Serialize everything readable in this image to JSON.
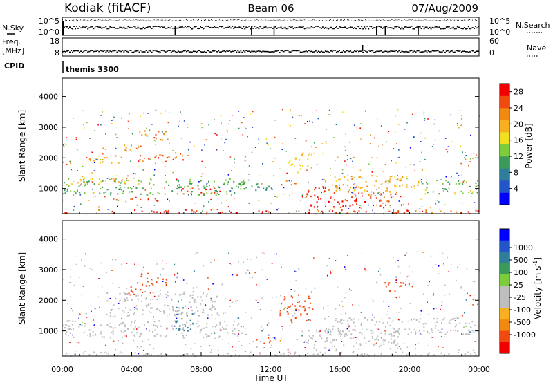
{
  "header": {
    "station": "Kodiak (fitACF)",
    "beam": "Beam 06",
    "date": "07/Aug/2009"
  },
  "aux_panels": {
    "nsky": {
      "label": "N.Sky",
      "tick_top": "10^5",
      "tick_bottom": "10^0"
    },
    "nsearch": {
      "label": "N.Search",
      "tick_top": "10^5",
      "tick_bottom": "10^0"
    },
    "freq": {
      "label_line1": "Freq.",
      "label_line2": "[MHz]",
      "tick_top": "18",
      "tick_bottom": "8"
    },
    "nave": {
      "label": "Nave",
      "tick_top": "60",
      "tick_bottom": "0"
    },
    "cpid": {
      "label": "CPID",
      "value": "themis 3300"
    }
  },
  "colors": {
    "power_scale": [
      "#0000ff",
      "#2255c8",
      "#2e7d9a",
      "#3a9a5a",
      "#7ccc3c",
      "#f0e020",
      "#f8b020",
      "#f08a10",
      "#f04a10",
      "#f00000"
    ],
    "velocity_scale": [
      "#f00000",
      "#f04a10",
      "#f08a10",
      "#f8b020",
      "#bebebe",
      "#bebebe",
      "#7ccc3c",
      "#3a9a5a",
      "#2e7d9a",
      "#2255c8",
      "#0000ff"
    ],
    "ground_scatter": "#bebebe"
  },
  "chart_data": [
    {
      "type": "heatmap",
      "name": "power",
      "ylabel": "Slant Range [km]",
      "ylim": [
        180,
        4600
      ],
      "xlim": [
        0,
        24
      ],
      "yticks": [
        "1000",
        "2000",
        "3000",
        "4000"
      ],
      "colorbar": {
        "label": "Power [dB]",
        "ticks": [
          "4",
          "8",
          "12",
          "16",
          "20",
          "24",
          "28"
        ],
        "range": [
          0,
          30
        ]
      },
      "features": [
        {
          "t0": 0.0,
          "t1": 24.0,
          "r0": 200,
          "r1": 330,
          "level": 26
        },
        {
          "t0": 0.0,
          "t1": 10.5,
          "r0": 800,
          "r1": 1350,
          "level": 12
        },
        {
          "t0": 0.2,
          "t1": 4.0,
          "r0": 1150,
          "r1": 1400,
          "level": 19
        },
        {
          "t0": 2.7,
          "t1": 6.5,
          "r0": 600,
          "r1": 700,
          "level": 27
        },
        {
          "t0": 6.6,
          "t1": 9.5,
          "r0": 850,
          "r1": 1050,
          "level": 26
        },
        {
          "t0": 1.5,
          "t1": 3.5,
          "r0": 1800,
          "r1": 2100,
          "level": 20
        },
        {
          "t0": 3.5,
          "t1": 4.8,
          "r0": 2200,
          "r1": 2500,
          "level": 23
        },
        {
          "t0": 4.3,
          "t1": 6.0,
          "r0": 2600,
          "r1": 2900,
          "level": 22
        },
        {
          "t0": 4.3,
          "t1": 7.0,
          "r0": 1900,
          "r1": 2200,
          "level": 25
        },
        {
          "t0": 10.0,
          "t1": 12.2,
          "r0": 900,
          "r1": 1200,
          "level": 10
        },
        {
          "t0": 12.5,
          "t1": 13.5,
          "r0": 1100,
          "r1": 1300,
          "level": 24
        },
        {
          "t0": 13.0,
          "t1": 14.4,
          "r0": 1500,
          "r1": 2200,
          "level": 18
        },
        {
          "t0": 14.0,
          "t1": 17.5,
          "r0": 400,
          "r1": 1100,
          "level": 28
        },
        {
          "t0": 17.5,
          "t1": 19.5,
          "r0": 400,
          "r1": 900,
          "level": 26
        },
        {
          "t0": 15.0,
          "t1": 20.5,
          "r0": 900,
          "r1": 1450,
          "level": 20
        },
        {
          "t0": 20.5,
          "t1": 24.0,
          "r0": 850,
          "r1": 1300,
          "level": 13
        }
      ]
    },
    {
      "type": "heatmap",
      "name": "velocity",
      "ylabel": "Slant Range [km]",
      "ylim": [
        180,
        4600
      ],
      "xlim": [
        0,
        24
      ],
      "yticks": [
        "1000",
        "2000",
        "3000",
        "4000"
      ],
      "xticks": [
        "00:00",
        "04:00",
        "08:00",
        "12:00",
        "16:00",
        "20:00",
        "00:00"
      ],
      "xlabel": "Time UT",
      "colorbar": {
        "label": "Velocity [m s",
        "label_sup": "-1",
        "label_end": "]",
        "ticks": [
          "1000",
          "500",
          "100",
          "25",
          "-25",
          "-100",
          "-500",
          "-1000"
        ]
      },
      "features": [
        {
          "t0": 0.0,
          "t1": 24.0,
          "r0": 200,
          "r1": 330,
          "kind": "ground"
        },
        {
          "t0": 0.0,
          "t1": 10.5,
          "r0": 800,
          "r1": 1350,
          "kind": "ground"
        },
        {
          "t0": 2.5,
          "t1": 9.0,
          "r0": 1500,
          "r1": 2300,
          "kind": "ground"
        },
        {
          "t0": 4.3,
          "t1": 6.0,
          "r0": 2500,
          "r1": 2900,
          "kind": "velocity",
          "value": -200
        },
        {
          "t0": 3.5,
          "t1": 4.8,
          "r0": 2200,
          "r1": 2500,
          "kind": "velocity",
          "value": -150
        },
        {
          "t0": 6.5,
          "t1": 7.5,
          "r0": 1000,
          "r1": 2000,
          "kind": "velocity",
          "value": 150
        },
        {
          "t0": 11.0,
          "t1": 12.0,
          "r0": 600,
          "r1": 800,
          "kind": "velocity",
          "value": -300
        },
        {
          "t0": 12.5,
          "t1": 14.4,
          "r0": 1300,
          "r1": 2200,
          "kind": "velocity",
          "value": -250
        },
        {
          "t0": 14.0,
          "t1": 19.5,
          "r0": 400,
          "r1": 1100,
          "kind": "ground"
        },
        {
          "t0": 15.0,
          "t1": 24.0,
          "r0": 900,
          "r1": 1450,
          "kind": "ground"
        },
        {
          "t0": 18.5,
          "t1": 20.5,
          "r0": 2300,
          "r1": 2600,
          "kind": "velocity",
          "value": -300
        }
      ]
    }
  ]
}
